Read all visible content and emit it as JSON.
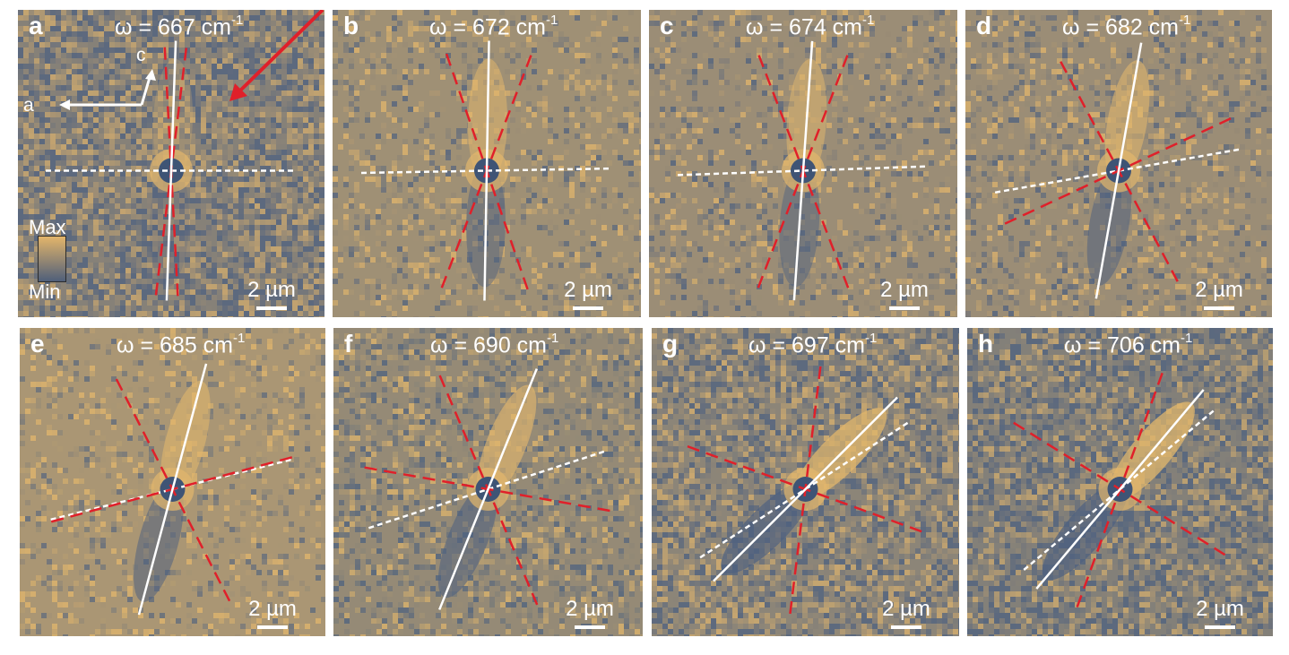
{
  "panels": [
    {
      "label": "a",
      "omega": "ω = 667 cm",
      "unit_exp": "-1",
      "scale": "2 µm",
      "white_angle": 2,
      "dash_angle": 90,
      "red_angles": [
        -5,
        5
      ],
      "noise": 0.85,
      "bias": 0.38,
      "lobe": 0.0
    },
    {
      "label": "b",
      "omega": "ω = 672 cm",
      "unit_exp": "-1",
      "scale": "2 µm",
      "white_angle": 1,
      "dash_angle": 89,
      "red_angles": [
        -20,
        20
      ],
      "noise": 0.3,
      "bias": 0.55,
      "lobe": 0.5
    },
    {
      "label": "c",
      "omega": "ω = 674 cm",
      "unit_exp": "-1",
      "scale": "2 µm",
      "white_angle": 4,
      "dash_angle": 88,
      "red_angles": [
        -25,
        17
      ],
      "noise": 0.3,
      "bias": 0.52,
      "lobe": 0.5
    },
    {
      "label": "d",
      "omega": "ω = 682 cm",
      "unit_exp": "-1",
      "scale": "2 µm",
      "white_angle": 10,
      "dash_angle": 80,
      "red_angles": [
        -38,
        55
      ],
      "noise": 0.35,
      "bias": 0.52,
      "lobe": 0.6
    },
    {
      "label": "e",
      "omega": "ω = 685 cm",
      "unit_exp": "-1",
      "scale": "2 µm",
      "white_angle": 15,
      "dash_angle": 76,
      "red_angles": [
        -42,
        60
      ],
      "noise": 0.28,
      "bias": 0.62,
      "lobe": 0.6
    },
    {
      "label": "f",
      "omega": "ω = 690 cm",
      "unit_exp": "-1",
      "scale": "2 µm",
      "white_angle": 22,
      "dash_angle": 72,
      "red_angles": [
        -45,
        78
      ],
      "noise": 0.45,
      "bias": 0.48,
      "lobe": 0.7
    },
    {
      "label": "g",
      "omega": "ω = 697 cm",
      "unit_exp": "-1",
      "scale": "2 µm",
      "white_angle": 45,
      "dash_angle": 57,
      "red_angles": [
        -38,
        65
      ],
      "noise": 0.75,
      "bias": 0.42,
      "lobe": 0.9
    },
    {
      "label": "h",
      "omega": "ω = 706 cm",
      "unit_exp": "-1",
      "scale": "2 µm",
      "white_angle": 40,
      "dash_angle": 50,
      "red_angles": [
        -20,
        82
      ],
      "noise": 0.75,
      "bias": 0.36,
      "lobe": 0.9
    }
  ],
  "axes": {
    "a_label": "a",
    "c_label": "c"
  },
  "colorbar": {
    "max": "Max",
    "min": "Min"
  },
  "colors": {
    "gold": "#e2b66c",
    "blue": "#4e6180",
    "red_dash": "#e0202a",
    "white": "#ffffff"
  }
}
